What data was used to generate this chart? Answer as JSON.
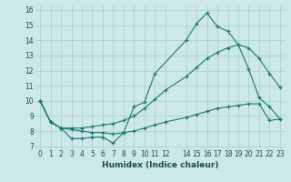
{
  "xlabel": "Humidex (Indice chaleur)",
  "ylabel": "",
  "bg_color": "#cce8e8",
  "grid_color": "#aacccc",
  "line_color": "#1a7a6e",
  "xlim": [
    -0.5,
    23.5
  ],
  "ylim": [
    6.8,
    16.3
  ],
  "xticks": [
    0,
    1,
    2,
    3,
    4,
    5,
    6,
    7,
    8,
    9,
    10,
    11,
    12,
    14,
    15,
    16,
    17,
    18,
    19,
    20,
    21,
    22,
    23
  ],
  "yticks": [
    7,
    8,
    9,
    10,
    11,
    12,
    13,
    14,
    15,
    16
  ],
  "series1_x": [
    0,
    1,
    2,
    3,
    4,
    5,
    6,
    7,
    8,
    9,
    10,
    11,
    14,
    15,
    16,
    17,
    18,
    19,
    20,
    21,
    22,
    23
  ],
  "series1_y": [
    10.0,
    8.6,
    8.2,
    7.5,
    7.5,
    7.6,
    7.6,
    7.2,
    7.9,
    9.6,
    9.9,
    11.8,
    14.0,
    15.1,
    15.8,
    14.9,
    14.6,
    13.7,
    12.1,
    10.2,
    9.6,
    8.8
  ],
  "series2_x": [
    0,
    1,
    2,
    3,
    4,
    5,
    6,
    7,
    8,
    9,
    10,
    11,
    12,
    14,
    15,
    16,
    17,
    18,
    19,
    20,
    21,
    22,
    23
  ],
  "series2_y": [
    10.0,
    8.6,
    8.2,
    8.2,
    8.2,
    8.3,
    8.4,
    8.5,
    8.7,
    9.0,
    9.5,
    10.1,
    10.7,
    11.6,
    12.2,
    12.8,
    13.2,
    13.5,
    13.7,
    13.5,
    12.8,
    11.8,
    10.9
  ],
  "series3_x": [
    0,
    1,
    2,
    3,
    4,
    5,
    6,
    7,
    8,
    9,
    10,
    11,
    12,
    14,
    15,
    16,
    17,
    18,
    19,
    20,
    21,
    22,
    23
  ],
  "series3_y": [
    10.0,
    8.6,
    8.2,
    8.1,
    8.0,
    7.9,
    7.9,
    7.8,
    7.9,
    8.0,
    8.2,
    8.4,
    8.6,
    8.9,
    9.1,
    9.3,
    9.5,
    9.6,
    9.7,
    9.8,
    9.8,
    8.7,
    8.8
  ],
  "marker": "+",
  "markersize": 3,
  "linewidth": 0.8,
  "label_fontsize": 6.5,
  "tick_fontsize": 5.5
}
